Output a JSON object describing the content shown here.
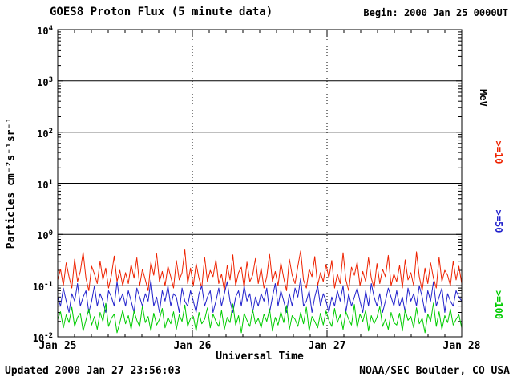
{
  "header": {
    "title": "GOES8 Proton Flux (5 minute data)",
    "begin": "Begin: 2000 Jan 25 0000UT"
  },
  "footer": {
    "updated": "Updated 2000 Jan 27 23:56:03",
    "credit": "NOAA/SEC Boulder, CO USA"
  },
  "chart_data": {
    "type": "line",
    "title": "GOES8 Proton Flux (5 minute data)",
    "xlabel": "Universal Time",
    "ylabel": "Particles cm⁻²s⁻¹sr⁻¹",
    "x_start": "2000 Jan 25 0000UT",
    "x_span_days": 3,
    "x_tick_labels": [
      "Jan 25",
      "Jan 26",
      "Jan 27",
      "Jan 28"
    ],
    "y_scale": "log",
    "y_min": 0.01,
    "y_max": 10000,
    "y_tick_exponents": [
      4,
      3,
      2,
      1,
      0,
      -1,
      -2
    ],
    "grid_decades": [
      1000,
      100,
      10,
      1,
      0.1
    ],
    "day_gridlines": [
      1,
      2
    ],
    "legend_position": "right",
    "right_labels": [
      {
        "text": "MeV",
        "color": "#000000"
      },
      {
        "text": ">=10",
        "color": "#ee2200"
      },
      {
        "text": ">=50",
        "color": "#2222cc"
      },
      {
        "text": ">=100",
        "color": "#00cc00"
      }
    ],
    "series": [
      {
        "name": ">=10 MeV",
        "color": "#ee2200",
        "values": [
          0.13,
          0.21,
          0.1,
          0.28,
          0.15,
          0.09,
          0.33,
          0.12,
          0.19,
          0.45,
          0.14,
          0.08,
          0.24,
          0.17,
          0.11,
          0.3,
          0.13,
          0.22,
          0.09,
          0.16,
          0.38,
          0.12,
          0.2,
          0.1,
          0.18,
          0.11,
          0.26,
          0.14,
          0.35,
          0.1,
          0.21,
          0.13,
          0.08,
          0.29,
          0.16,
          0.42,
          0.12,
          0.19,
          0.1,
          0.24,
          0.15,
          0.09,
          0.31,
          0.13,
          0.18,
          0.5,
          0.11,
          0.22,
          0.1,
          0.27,
          0.14,
          0.09,
          0.36,
          0.12,
          0.2,
          0.15,
          0.32,
          0.11,
          0.17,
          0.08,
          0.25,
          0.13,
          0.4,
          0.1,
          0.18,
          0.23,
          0.09,
          0.29,
          0.12,
          0.16,
          0.34,
          0.11,
          0.22,
          0.09,
          0.15,
          0.41,
          0.12,
          0.19,
          0.1,
          0.28,
          0.14,
          0.08,
          0.33,
          0.16,
          0.11,
          0.24,
          0.48,
          0.13,
          0.09,
          0.21,
          0.15,
          0.37,
          0.1,
          0.18,
          0.12,
          0.26,
          0.14,
          0.31,
          0.09,
          0.17,
          0.11,
          0.44,
          0.13,
          0.08,
          0.23,
          0.16,
          0.29,
          0.1,
          0.19,
          0.12,
          0.35,
          0.14,
          0.09,
          0.27,
          0.11,
          0.21,
          0.15,
          0.39,
          0.1,
          0.17,
          0.12,
          0.25,
          0.09,
          0.32,
          0.13,
          0.18,
          0.1,
          0.46,
          0.15,
          0.08,
          0.22,
          0.11,
          0.28,
          0.14,
          0.09,
          0.36,
          0.12,
          0.2,
          0.16,
          0.1,
          0.3,
          0.13,
          0.24,
          0.11
        ]
      },
      {
        "name": ">=50 MeV",
        "color": "#2222cc",
        "values": [
          0.06,
          0.04,
          0.09,
          0.05,
          0.03,
          0.07,
          0.05,
          0.11,
          0.04,
          0.06,
          0.08,
          0.03,
          0.05,
          0.1,
          0.04,
          0.07,
          0.05,
          0.03,
          0.08,
          0.06,
          0.04,
          0.12,
          0.05,
          0.07,
          0.04,
          0.08,
          0.05,
          0.03,
          0.09,
          0.06,
          0.04,
          0.07,
          0.05,
          0.13,
          0.04,
          0.06,
          0.03,
          0.08,
          0.05,
          0.1,
          0.04,
          0.07,
          0.06,
          0.03,
          0.09,
          0.05,
          0.04,
          0.08,
          0.05,
          0.03,
          0.07,
          0.1,
          0.04,
          0.06,
          0.08,
          0.03,
          0.05,
          0.09,
          0.04,
          0.07,
          0.12,
          0.05,
          0.03,
          0.06,
          0.08,
          0.04,
          0.1,
          0.05,
          0.07,
          0.03,
          0.06,
          0.04,
          0.07,
          0.05,
          0.09,
          0.03,
          0.06,
          0.11,
          0.04,
          0.08,
          0.05,
          0.03,
          0.07,
          0.04,
          0.09,
          0.06,
          0.14,
          0.04,
          0.05,
          0.08,
          0.03,
          0.06,
          0.1,
          0.04,
          0.07,
          0.05,
          0.03,
          0.06,
          0.04,
          0.08,
          0.05,
          0.1,
          0.03,
          0.07,
          0.04,
          0.06,
          0.09,
          0.05,
          0.03,
          0.08,
          0.04,
          0.11,
          0.06,
          0.04,
          0.07,
          0.03,
          0.05,
          0.09,
          0.06,
          0.04,
          0.08,
          0.04,
          0.06,
          0.03,
          0.09,
          0.05,
          0.07,
          0.04,
          0.1,
          0.06,
          0.03,
          0.08,
          0.05,
          0.12,
          0.04,
          0.06,
          0.09,
          0.03,
          0.07,
          0.05,
          0.04,
          0.08,
          0.06,
          0.05
        ]
      },
      {
        "name": ">=100 MeV",
        "color": "#00cc00",
        "values": [
          0.022,
          0.031,
          0.015,
          0.027,
          0.019,
          0.038,
          0.016,
          0.024,
          0.029,
          0.013,
          0.021,
          0.035,
          0.017,
          0.025,
          0.014,
          0.03,
          0.02,
          0.045,
          0.016,
          0.023,
          0.028,
          0.012,
          0.019,
          0.033,
          0.018,
          0.026,
          0.014,
          0.032,
          0.021,
          0.016,
          0.04,
          0.019,
          0.025,
          0.013,
          0.029,
          0.017,
          0.022,
          0.036,
          0.015,
          0.024,
          0.018,
          0.031,
          0.014,
          0.027,
          0.02,
          0.042,
          0.016,
          0.023,
          0.025,
          0.013,
          0.03,
          0.018,
          0.022,
          0.037,
          0.015,
          0.028,
          0.02,
          0.016,
          0.033,
          0.014,
          0.024,
          0.019,
          0.044,
          0.017,
          0.026,
          0.012,
          0.029,
          0.021,
          0.016,
          0.034,
          0.018,
          0.023,
          0.015,
          0.028,
          0.02,
          0.035,
          0.013,
          0.024,
          0.017,
          0.031,
          0.019,
          0.041,
          0.014,
          0.026,
          0.022,
          0.016,
          0.03,
          0.018,
          0.038,
          0.013,
          0.025,
          0.02,
          0.015,
          0.029,
          0.017,
          0.032,
          0.021,
          0.016,
          0.036,
          0.019,
          0.027,
          0.014,
          0.031,
          0.022,
          0.017,
          0.043,
          0.015,
          0.028,
          0.02,
          0.033,
          0.013,
          0.026,
          0.018,
          0.024,
          0.039,
          0.016,
          0.022,
          0.014,
          0.03,
          0.019,
          0.017,
          0.029,
          0.013,
          0.034,
          0.021,
          0.025,
          0.015,
          0.037,
          0.018,
          0.023,
          0.012,
          0.028,
          0.02,
          0.046,
          0.016,
          0.031,
          0.014,
          0.026,
          0.019,
          0.035,
          0.017,
          0.022,
          0.027,
          0.015
        ]
      }
    ]
  }
}
